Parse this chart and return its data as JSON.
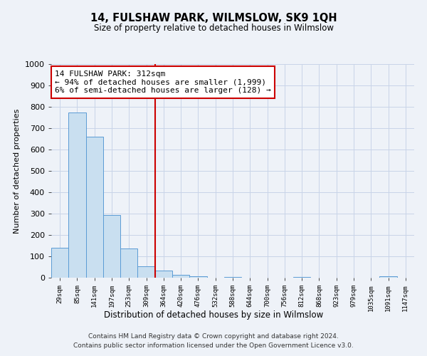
{
  "title": "14, FULSHAW PARK, WILMSLOW, SK9 1QH",
  "subtitle": "Size of property relative to detached houses in Wilmslow",
  "xlabel": "Distribution of detached houses by size in Wilmslow",
  "ylabel": "Number of detached properties",
  "bar_labels": [
    "29sqm",
    "85sqm",
    "141sqm",
    "197sqm",
    "253sqm",
    "309sqm",
    "364sqm",
    "420sqm",
    "476sqm",
    "532sqm",
    "588sqm",
    "644sqm",
    "700sqm",
    "756sqm",
    "812sqm",
    "868sqm",
    "923sqm",
    "979sqm",
    "1035sqm",
    "1091sqm",
    "1147sqm"
  ],
  "bar_values": [
    140,
    775,
    660,
    293,
    138,
    55,
    32,
    15,
    8,
    0,
    5,
    0,
    0,
    0,
    3,
    0,
    0,
    0,
    0,
    8,
    0
  ],
  "bar_color": "#c9dff0",
  "bar_edge_color": "#5b9bd5",
  "vline_color": "#cc0000",
  "vline_position": 5.5,
  "annotation_text": "14 FULSHAW PARK: 312sqm\n← 94% of detached houses are smaller (1,999)\n6% of semi-detached houses are larger (128) →",
  "annotation_box_color": "#ffffff",
  "annotation_box_edge_color": "#cc0000",
  "ylim": [
    0,
    1000
  ],
  "yticks": [
    0,
    100,
    200,
    300,
    400,
    500,
    600,
    700,
    800,
    900,
    1000
  ],
  "grid_color": "#c8d4e8",
  "footer_line1": "Contains HM Land Registry data © Crown copyright and database right 2024.",
  "footer_line2": "Contains public sector information licensed under the Open Government Licence v3.0.",
  "background_color": "#eef2f8"
}
